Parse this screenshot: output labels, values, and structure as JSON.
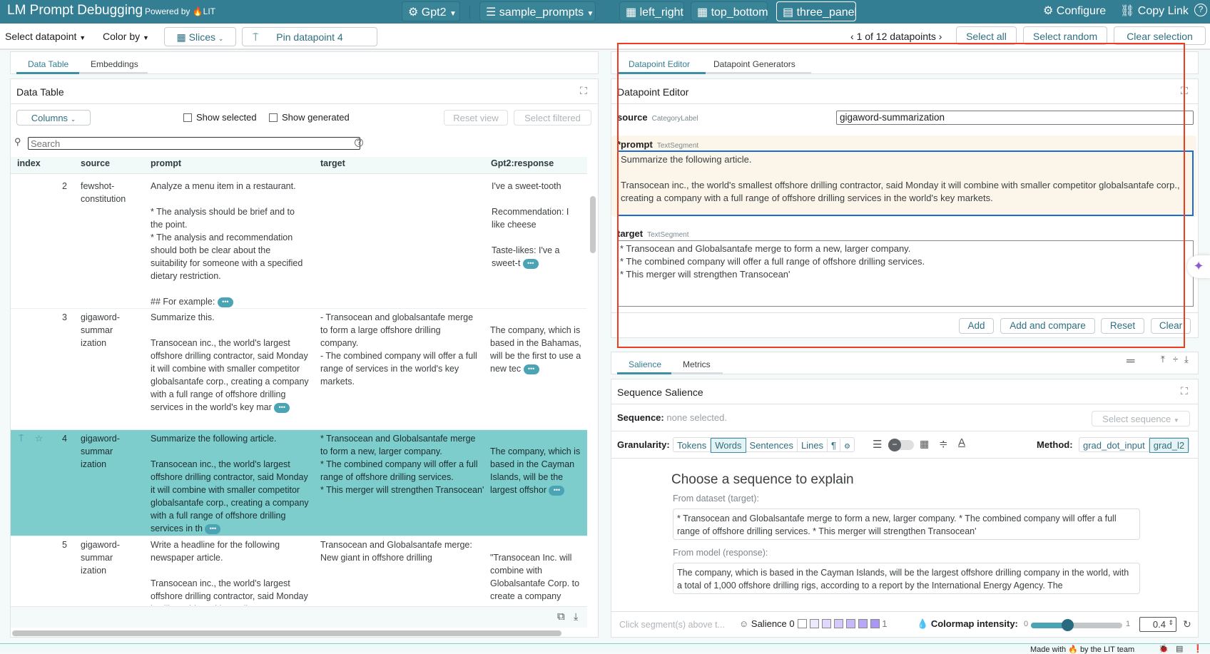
{
  "header": {
    "title": "LM Prompt Debugging",
    "powered_by": "Powered by",
    "lit": "LIT",
    "model": "Gpt2",
    "dataset": "sample_prompts",
    "layouts": [
      "left_right",
      "top_bottom",
      "three_panel"
    ],
    "active_layout": "three_panel",
    "configure": "Configure",
    "copy_link": "Copy Link"
  },
  "toolbar": {
    "select_datapoint": "Select datapoint",
    "color_by": "Color by",
    "slices": "Slices",
    "pin": "Pin datapoint 4",
    "nav": "1 of 12 datapoints",
    "select_all": "Select all",
    "select_random": "Select random",
    "clear_selection": "Clear selection"
  },
  "left": {
    "tabs": [
      "Data Table",
      "Embeddings"
    ],
    "active_tab": "Data Table",
    "panel_title": "Data Table",
    "columns": "Columns",
    "show_selected": "Show selected",
    "show_generated": "Show generated",
    "reset_view": "Reset view",
    "select_filtered": "Select filtered",
    "search_placeholder": "Search",
    "headers": [
      "index",
      "source",
      "prompt",
      "target",
      "Gpt2:response"
    ],
    "rows": [
      {
        "index": "2",
        "source": "fewshot-\nconstitution",
        "prompt": "Analyze a menu item in a restaurant.\n\n* The analysis should be brief and to the point.\n* The analysis and recommendation should both be clear about the suitability for someone with a specified dietary restriction.\n\n## For example:",
        "target": "",
        "response": "I've a sweet-tooth\n\nRecommendation: I like cheese\n\nTaste-likes: I've a sweet-t",
        "selected": false
      },
      {
        "index": "3",
        "source": "gigaword-\nsummar\nization",
        "prompt": "Summarize this.\n\nTransocean inc., the world's largest offshore drilling contractor, said Monday it will combine with smaller competitor globalsantafe corp., creating a company with a full range of offshore drilling services in the world's key mar",
        "target": "- Transocean and globalsantafe merge to form a large offshore drilling company.\n- The combined company will offer a full range of services in the world's key markets.",
        "response": "\nThe company, which is based in the Bahamas, will be the first to use a new tec",
        "selected": false
      },
      {
        "index": "4",
        "source": "gigaword-\nsummar\nization",
        "prompt": "Summarize the following article.\n\nTransocean inc., the world's largest offshore drilling contractor, said Monday it will combine with smaller competitor globalsantafe corp., creating a company with a full range of offshore drilling services in th",
        "target": "* Transocean and Globalsantafe merge to form a new, larger company.\n* The combined company will offer a full range of offshore drilling services.\n* This merger will strengthen Transocean'",
        "response": "\nThe company, which is based in the Cayman Islands, will be the largest offshor",
        "selected": true
      },
      {
        "index": "5",
        "source": "gigaword-\nsummar\nization",
        "prompt": "Write a headline for the following newspaper article.\n\nTransocean inc., the world's largest offshore drilling contractor, said Monday it will combine with smaller",
        "target": "Transocean and Globalsantafe merge: New giant in offshore drilling",
        "response": "\n\"Transocean Inc. will combine with Globalsantafe Corp. to create a company",
        "selected": false
      }
    ]
  },
  "editor": {
    "tabs": [
      "Datapoint Editor",
      "Datapoint Generators"
    ],
    "active_tab": "Datapoint Editor",
    "panel_title": "Datapoint Editor",
    "source_label": "source",
    "source_type": "CategoryLabel",
    "source_value": "gigaword-summarization",
    "prompt_label": "*prompt",
    "prompt_type": "TextSegment",
    "prompt_value": "Summarize the following article.\n\nTransocean inc., the world's smallest offshore drilling contractor, said Monday it will combine with smaller competitor globalsantafe corp., creating a company with a full range of offshore drilling services in the world's key markets.",
    "target_label": "target",
    "target_type": "TextSegment",
    "target_value": "* Transocean and Globalsantafe merge to form a new, larger company.\n* The combined company will offer a full range of offshore drilling services.\n* This merger will strengthen Transocean'",
    "buttons": [
      "Add",
      "Add and compare",
      "Reset",
      "Clear"
    ]
  },
  "salience": {
    "tabs": [
      "Salience",
      "Metrics"
    ],
    "active_tab": "Salience",
    "panel_title": "Sequence Salience",
    "sequence_label": "Sequence:",
    "sequence_value": "none selected.",
    "select_sequence": "Select sequence",
    "granularity_label": "Granularity:",
    "granularity": [
      "Tokens",
      "Words",
      "Sentences",
      "Lines",
      "¶",
      "⚙"
    ],
    "active_granularity": "Words",
    "method_label": "Method:",
    "methods": [
      "grad_dot_input",
      "grad_l2"
    ],
    "active_method": "grad_l2",
    "choose_title": "Choose a sequence to explain",
    "from_dataset": "From dataset (target):",
    "dataset_text": "* Transocean and Globalsantafe merge to form a new, larger company. * The combined company will offer a full range of offshore drilling services. * This merger will strengthen Transocean'",
    "from_model": "From model (response):",
    "model_text": "The company, which is based in the Cayman Islands, will be the largest offshore drilling company in the world, with a total of 1,000 offshore drilling rigs, according to a report by the International Energy Agency. The",
    "hint": "Click segment(s) above t...",
    "legend_label": "Salience",
    "legend_min": "0",
    "legend_max": "1",
    "legend_colors": [
      "#ffffff",
      "#eeeafd",
      "#e1d9fc",
      "#d4c9fa",
      "#c7b9f8",
      "#b9a8f6",
      "#aa96f3"
    ],
    "colormap_label": "Colormap intensity:",
    "cm_min": "0",
    "cm_max": "1",
    "intensity": 0.4,
    "intensity_text": "0.4"
  },
  "footer": {
    "text": "Made with 🔥 by the LIT team"
  },
  "colors": {
    "header": "#337e93",
    "selected_row": "#7dcdcd",
    "annotation_box": "#f03c1e"
  }
}
